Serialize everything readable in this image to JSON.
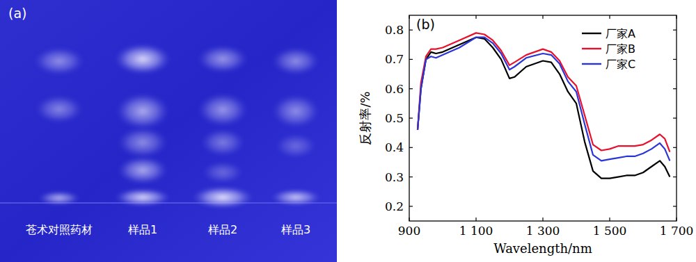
{
  "panel_a": {
    "label": "(a)",
    "lanes": [
      "苍术对照药材",
      "样品1",
      "样品2",
      "样品3"
    ]
  },
  "chart_data": {
    "type": "line",
    "title": "(b)",
    "x_label": "Wavelength/nm",
    "y_label": "反射率/%",
    "x": [
      925,
      935,
      950,
      965,
      980,
      1000,
      1050,
      1100,
      1125,
      1150,
      1175,
      1200,
      1215,
      1250,
      1300,
      1325,
      1350,
      1375,
      1400,
      1425,
      1450,
      1475,
      1500,
      1525,
      1550,
      1575,
      1600,
      1625,
      1650,
      1665,
      1680
    ],
    "series": [
      {
        "name": "厂家A",
        "color": "#000000",
        "values": [
          0.46,
          0.6,
          0.7,
          0.725,
          0.72,
          0.725,
          0.75,
          0.775,
          0.77,
          0.74,
          0.7,
          0.635,
          0.64,
          0.675,
          0.695,
          0.69,
          0.65,
          0.59,
          0.55,
          0.42,
          0.32,
          0.295,
          0.295,
          0.3,
          0.305,
          0.305,
          0.315,
          0.335,
          0.355,
          0.335,
          0.3
        ]
      },
      {
        "name": "厂家B",
        "color": "#e8112d",
        "values": [
          0.46,
          0.62,
          0.71,
          0.735,
          0.735,
          0.74,
          0.765,
          0.79,
          0.785,
          0.765,
          0.73,
          0.68,
          0.69,
          0.715,
          0.735,
          0.725,
          0.695,
          0.64,
          0.61,
          0.51,
          0.41,
          0.39,
          0.395,
          0.405,
          0.405,
          0.405,
          0.41,
          0.425,
          0.445,
          0.43,
          0.385
        ]
      },
      {
        "name": "厂家C",
        "color": "#2b35d6",
        "values": [
          0.46,
          0.6,
          0.7,
          0.71,
          0.705,
          0.715,
          0.74,
          0.775,
          0.775,
          0.755,
          0.72,
          0.665,
          0.675,
          0.705,
          0.72,
          0.715,
          0.685,
          0.625,
          0.59,
          0.48,
          0.375,
          0.355,
          0.36,
          0.365,
          0.37,
          0.37,
          0.38,
          0.395,
          0.415,
          0.395,
          0.355
        ]
      }
    ],
    "xlim": [
      900,
      1700
    ],
    "xticks": [
      900,
      {
        "value": 1100,
        "label": "1 100"
      },
      {
        "value": 1300,
        "label": "1 300"
      },
      {
        "value": 1500,
        "label": "1 500"
      },
      {
        "value": 1700,
        "label": "1 700"
      }
    ],
    "ylim": [
      0.15,
      0.85
    ],
    "yticks": [
      0.2,
      0.3,
      0.4,
      0.5,
      0.6,
      0.7,
      0.8
    ],
    "grid": false,
    "legend": "top-right"
  }
}
